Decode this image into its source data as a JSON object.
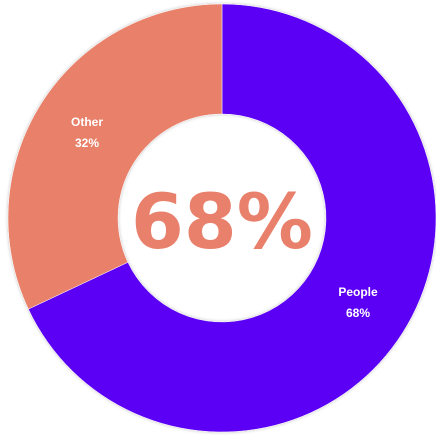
{
  "chart_data": {
    "type": "pie",
    "donut": true,
    "center_label": "68%",
    "slices": [
      {
        "label": "People",
        "value": 68,
        "value_label": "68%",
        "color": "#5B05F5"
      },
      {
        "label": "Other",
        "value": 32,
        "value_label": "32%",
        "color": "#E8806B"
      }
    ],
    "center_label_color": "#E8806B",
    "start_angle_deg": 0,
    "direction": "clockwise"
  }
}
